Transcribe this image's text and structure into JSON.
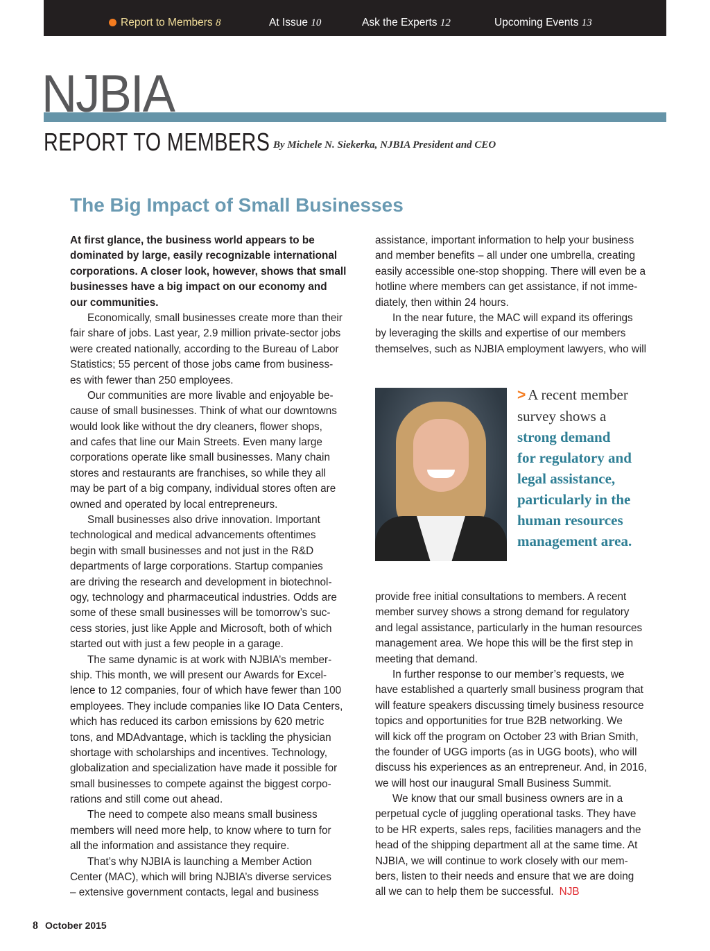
{
  "nav": {
    "items": [
      {
        "label": "Report to Members",
        "page": "8",
        "active": true
      },
      {
        "label": "At Issue",
        "page": "10"
      },
      {
        "label": "Ask the Experts",
        "page": "12"
      },
      {
        "label": "Upcoming Events",
        "page": "13"
      }
    ],
    "active_dot_color": "#f47c20"
  },
  "masthead": {
    "logo": "NJBIA",
    "section": "REPORT TO MEMBERS",
    "byline": "By Michele N. Siekerka, NJBIA President and CEO",
    "bar_color": "#6594a8"
  },
  "article": {
    "headline": "The Big Impact of Small Businesses",
    "left_column": [
      {
        "bold": true,
        "indent": false,
        "lines": [
          "At first glance, the business world appears to be",
          "dominated by large, easily recognizable international",
          "corporations. A closer look, however, shows that small",
          "businesses have a big impact on our economy and",
          "our communities."
        ]
      },
      {
        "indent": true,
        "lines": [
          "Economically, small businesses create more than their",
          "fair share of jobs. Last year, 2.9 million private-sector jobs",
          "were created nationally, according to the Bureau of Labor",
          "Statistics; 55 percent of those jobs came from business-",
          "es with fewer than 250 employees."
        ]
      },
      {
        "indent": true,
        "lines": [
          "Our communities are more livable and enjoyable be-",
          "cause of small businesses. Think of what our downtowns",
          "would look like without the dry cleaners, flower shops,",
          "and cafes that line our Main Streets. Even many large",
          "corporations operate like small businesses. Many chain",
          "stores and restaurants are franchises, so while they all",
          "may be part of a big company, individual stores often are",
          "owned and operated by local entrepreneurs."
        ]
      },
      {
        "indent": true,
        "lines": [
          "Small businesses also drive innovation. Important",
          "technological and medical advancements oftentimes",
          "begin with small businesses and not just in the R&D",
          "departments of large corporations. Startup companies",
          "are driving the research and development in biotechnol-",
          "ogy, technology and pharmaceutical industries. Odds are",
          "some of these small businesses will be tomorrow’s suc-",
          "cess stories, just like Apple and Microsoft, both of which",
          "started out with just a few people in a garage."
        ]
      },
      {
        "indent": true,
        "lines": [
          "The same dynamic is at work with NJBIA’s member-",
          "ship. This month, we will present our Awards for Excel-",
          "lence to 12 companies, four of which have fewer than 100",
          "employees. They include companies like IO Data Centers,",
          "which has reduced its carbon emissions by 620 metric",
          "tons, and MDAdvantage, which is tackling the physician",
          "shortage with scholarships and incentives. Technology,",
          "globalization and specialization have made it possible for",
          "small businesses to compete against the biggest corpo-",
          "rations and still come out ahead."
        ]
      },
      {
        "indent": true,
        "lines": [
          "The need to compete also means small business",
          "members will need more help, to know where to turn for",
          "all the information and assistance they require."
        ]
      },
      {
        "indent": true,
        "lines": [
          "That’s why NJBIA is launching a Member Action",
          "Center (MAC), which will bring NJBIA’s diverse services",
          "– extensive government contacts, legal and business"
        ]
      }
    ],
    "right_column_top": [
      {
        "indent": false,
        "lines": [
          "assistance, important information to help your business",
          "and member benefits – all under one umbrella, creating",
          "easily accessible one-stop shopping. There will even be a",
          "hotline where members can get assistance, if not imme-",
          "diately, then within 24 hours."
        ]
      },
      {
        "indent": true,
        "lines": [
          "In the near future, the MAC will expand its offerings",
          "by leveraging the skills and expertise of our members",
          "themselves, such as NJBIA employment lawyers, who will"
        ]
      }
    ],
    "right_column_bottom": [
      {
        "indent": false,
        "lines": [
          "provide free initial consultations to members. A recent",
          "member survey shows a strong demand for regulatory",
          "and legal assistance, particularly in the human resources",
          "management area. We hope this will be the first step in",
          "meeting that demand."
        ]
      },
      {
        "indent": true,
        "lines": [
          "In further response to our member’s requests, we",
          "have established a quarterly small business program that",
          "will feature speakers discussing timely business resource",
          "topics and opportunities for true B2B networking. We",
          "will kick off the program on October 23 with Brian Smith,",
          "the founder of UGG imports (as in UGG boots), who will",
          "discuss his experiences as an entrepreneur. And, in 2016,",
          "we will host our inaugural Small Business Summit."
        ]
      },
      {
        "indent": true,
        "lines": [
          "We know that our small business owners are in a",
          "perpetual cycle of juggling operational tasks. They have",
          "to be HR experts, sales reps, facilities managers and the",
          "head of the shipping department all at the same time. At",
          "NJBIA, we will continue to work closely with our mem-",
          "bers, listen to their needs and ensure that we are doing",
          "all we can to help them be successful."
        ]
      }
    ],
    "end_mark": "NJB",
    "pull_quote": {
      "arrow": ">",
      "plain_lines": [
        "A recent member",
        "survey shows a"
      ],
      "highlight_lines": [
        "strong demand",
        "for regulatory and",
        "legal assistance,",
        "particularly in the",
        "human resources",
        "management area."
      ]
    }
  },
  "footer": {
    "page_number": "8",
    "issue": "October 2015"
  }
}
